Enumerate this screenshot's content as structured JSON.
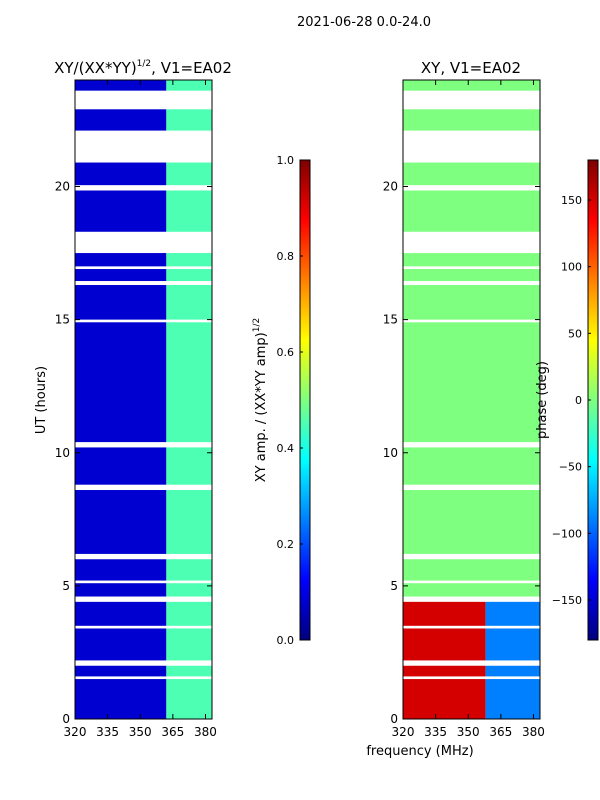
{
  "figure": {
    "suptitle": "2021-06-28 0.0-24.0",
    "xlabel": "frequency (MHz)"
  },
  "colors": {
    "jet": [
      "#00007f",
      "#0000ff",
      "#007fff",
      "#00ffff",
      "#7fff7f",
      "#ffff00",
      "#ff7f00",
      "#ff0000",
      "#7f0000"
    ]
  },
  "chart_data": [
    {
      "type": "heatmap",
      "title": "XY/(XX*YY)",
      "title_sup": "1/2",
      "title_suffix": ", V1=EA02",
      "xlabel": "",
      "ylabel": "UT (hours)",
      "xlim": [
        320,
        383
      ],
      "ylim": [
        0,
        24
      ],
      "xticks": [
        320,
        335,
        350,
        365,
        380
      ],
      "yticks": [
        0,
        5,
        10,
        15,
        20
      ],
      "colorbar": {
        "label": "XY amp. / (XX*YY amp)",
        "label_sup": "1/2",
        "range": [
          0.0,
          1.0
        ],
        "ticks": [
          "0.0",
          "0.2",
          "0.4",
          "0.6",
          "0.8",
          "1.0"
        ],
        "tick_values": [
          0.0,
          0.2,
          0.4,
          0.6,
          0.8,
          1.0
        ]
      },
      "regions": [
        {
          "freq_range": [
            320,
            362
          ],
          "value": 0.08
        },
        {
          "freq_range": [
            362,
            383
          ],
          "value": 0.45
        }
      ],
      "flagged_ut_hours": [
        [
          22.9,
          23.6
        ],
        [
          20.9,
          22.1
        ],
        [
          19.85,
          20.05
        ],
        [
          17.5,
          18.3
        ],
        [
          16.9,
          17.0
        ],
        [
          16.3,
          16.45
        ],
        [
          14.9,
          15.0
        ],
        [
          10.2,
          10.4
        ],
        [
          8.6,
          8.8
        ],
        [
          6.0,
          6.2
        ],
        [
          5.1,
          5.2
        ],
        [
          4.4,
          4.6
        ],
        [
          3.4,
          3.5
        ],
        [
          2.0,
          2.2
        ],
        [
          1.5,
          1.6
        ]
      ]
    },
    {
      "type": "heatmap",
      "title": "XY, V1=EA02",
      "xlabel": "frequency (MHz)",
      "ylabel": "",
      "xlim": [
        320,
        383
      ],
      "ylim": [
        0,
        24
      ],
      "xticks": [
        320,
        335,
        350,
        365,
        380
      ],
      "yticks": [
        0,
        5,
        10,
        15,
        20
      ],
      "colorbar": {
        "label": "phase (deg)",
        "range": [
          -180,
          180
        ],
        "ticks": [
          "150",
          "100",
          "50",
          "0",
          "−50",
          "−100",
          "−150"
        ],
        "tick_values": [
          150,
          100,
          50,
          0,
          -50,
          -100,
          -150
        ]
      },
      "regions": [
        {
          "ut_range": [
            0,
            4.5
          ],
          "freq_range": [
            320,
            358
          ],
          "value": 150
        },
        {
          "ut_range": [
            0,
            4.5
          ],
          "freq_range": [
            358,
            383
          ],
          "value": -90
        },
        {
          "ut_range": [
            4.5,
            24
          ],
          "freq_range": [
            320,
            383
          ],
          "value": 0
        }
      ],
      "flagged_ut_hours": [
        [
          22.9,
          23.6
        ],
        [
          20.9,
          22.1
        ],
        [
          19.85,
          20.05
        ],
        [
          17.5,
          18.3
        ],
        [
          16.9,
          17.0
        ],
        [
          16.3,
          16.45
        ],
        [
          14.9,
          15.0
        ],
        [
          10.2,
          10.4
        ],
        [
          8.6,
          8.8
        ],
        [
          6.0,
          6.2
        ],
        [
          5.1,
          5.2
        ],
        [
          4.4,
          4.6
        ],
        [
          3.4,
          3.5
        ],
        [
          2.0,
          2.2
        ],
        [
          1.5,
          1.6
        ]
      ]
    }
  ]
}
